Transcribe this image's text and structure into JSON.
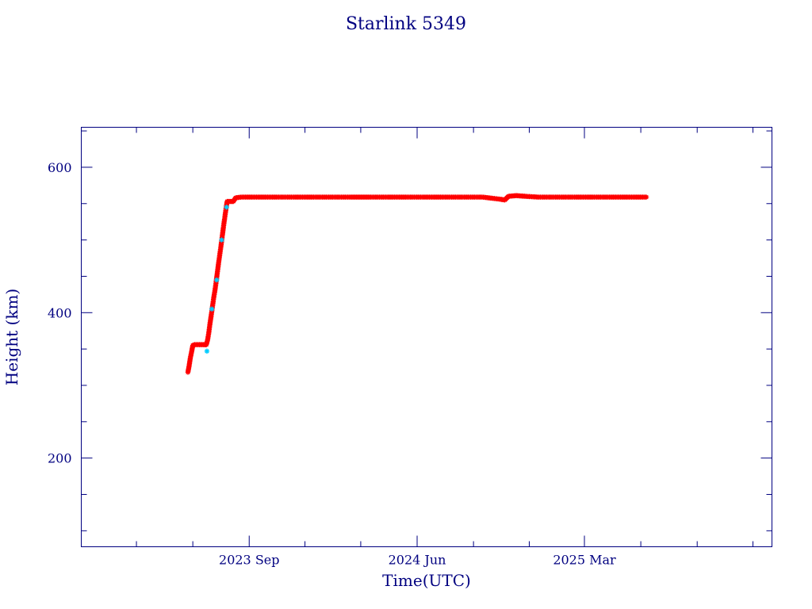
{
  "chart_data": {
    "type": "scatter",
    "title": "Starlink 5349",
    "xlabel": "Time(UTC)",
    "ylabel": "Height (km)",
    "x_start": "2022-12-01",
    "x_end": "2026-01-01",
    "xlim": [
      "2022-12-01",
      "2026-01-01"
    ],
    "ylim": [
      78,
      655
    ],
    "x_ticks": [
      {
        "date": "2023-09-01",
        "label": "2023 Sep"
      },
      {
        "date": "2024-06-01",
        "label": "2024 Jun"
      },
      {
        "date": "2025-03-01",
        "label": "2025 Mar"
      }
    ],
    "y_ticks": [
      {
        "value": 200,
        "label": "200"
      },
      {
        "value": 400,
        "label": "400"
      },
      {
        "value": 600,
        "label": "600"
      }
    ],
    "y_minor_step": 50,
    "grid": false,
    "colors": {
      "axes": "#000080",
      "primary_points": "#ff0000",
      "secondary_points": "#00ccff"
    },
    "series": [
      {
        "color": "#ff0000",
        "marker": "asterisk",
        "points": [
          [
            "2023-05-24",
            318
          ],
          [
            "2023-05-26",
            327
          ],
          [
            "2023-05-28",
            338
          ],
          [
            "2023-05-30",
            346
          ],
          [
            "2023-06-01",
            355
          ],
          [
            "2023-06-04",
            356
          ],
          [
            "2023-06-08",
            356
          ],
          [
            "2023-06-12",
            356
          ],
          [
            "2023-06-16",
            356
          ],
          [
            "2023-06-20",
            356
          ],
          [
            "2023-06-23",
            356
          ],
          [
            "2023-06-25",
            362
          ],
          [
            "2023-06-27",
            372
          ],
          [
            "2023-06-29",
            385
          ],
          [
            "2023-07-01",
            396
          ],
          [
            "2023-07-03",
            408
          ],
          [
            "2023-07-05",
            420
          ],
          [
            "2023-07-07",
            430
          ],
          [
            "2023-07-09",
            442
          ],
          [
            "2023-07-11",
            455
          ],
          [
            "2023-07-13",
            468
          ],
          [
            "2023-07-15",
            480
          ],
          [
            "2023-07-17",
            492
          ],
          [
            "2023-07-19",
            505
          ],
          [
            "2023-07-21",
            518
          ],
          [
            "2023-07-23",
            530
          ],
          [
            "2023-07-25",
            542
          ],
          [
            "2023-07-27",
            553
          ],
          [
            "2023-08-01",
            553
          ],
          [
            "2023-08-06",
            553
          ],
          [
            "2023-08-10",
            558
          ],
          [
            "2023-08-20",
            559
          ],
          [
            "2023-09-15",
            559
          ],
          [
            "2023-10-15",
            559
          ],
          [
            "2023-11-15",
            559
          ],
          [
            "2023-12-15",
            559
          ],
          [
            "2024-01-15",
            559
          ],
          [
            "2024-02-15",
            559
          ],
          [
            "2024-03-15",
            559
          ],
          [
            "2024-04-15",
            559
          ],
          [
            "2024-05-15",
            559
          ],
          [
            "2024-06-15",
            559
          ],
          [
            "2024-07-15",
            559
          ],
          [
            "2024-08-15",
            559
          ],
          [
            "2024-09-15",
            559
          ],
          [
            "2024-09-25",
            558
          ],
          [
            "2024-10-05",
            557
          ],
          [
            "2024-10-15",
            556
          ],
          [
            "2024-10-22",
            555
          ],
          [
            "2024-10-28",
            560
          ],
          [
            "2024-11-10",
            561
          ],
          [
            "2024-11-25",
            560
          ],
          [
            "2024-12-15",
            559
          ],
          [
            "2025-01-15",
            559
          ],
          [
            "2025-02-15",
            559
          ],
          [
            "2025-03-15",
            559
          ],
          [
            "2025-04-15",
            559
          ],
          [
            "2025-05-15",
            559
          ],
          [
            "2025-06-10",
            559
          ]
        ]
      },
      {
        "color": "#00ccff",
        "marker": "asterisk",
        "points": [
          [
            "2023-06-24",
            347
          ],
          [
            "2023-07-02",
            405
          ],
          [
            "2023-07-10",
            445
          ],
          [
            "2023-07-18",
            500
          ],
          [
            "2023-07-26",
            545
          ]
        ]
      }
    ]
  }
}
